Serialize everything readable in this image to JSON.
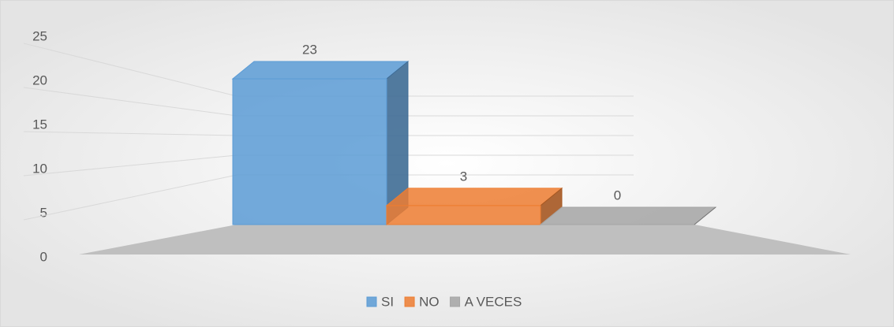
{
  "chart_data": {
    "type": "bar3d",
    "categories": [
      null
    ],
    "series": [
      {
        "name": "SI",
        "color": "#5b9bd5",
        "values": [
          23
        ]
      },
      {
        "name": "NO",
        "color": "#ed7d31",
        "values": [
          3
        ]
      },
      {
        "name": "A VECES",
        "color": "#a5a5a5",
        "values": [
          0
        ]
      }
    ],
    "ylim": [
      0,
      25
    ],
    "yticks": [
      0,
      5,
      10,
      15,
      20,
      25
    ],
    "grid": true,
    "legend": "bottom"
  }
}
